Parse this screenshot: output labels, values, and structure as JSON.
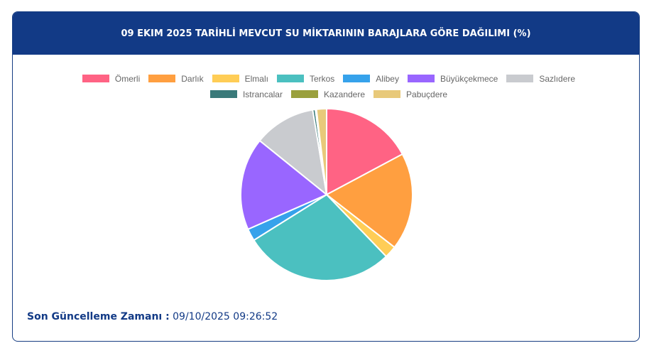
{
  "chart_data": {
    "type": "pie",
    "title": "09 EKIM 2025 TARİHLİ MEVCUT SU MİKTARININ BARAJLARA GÖRE DAĞILIMI (%)",
    "categories": [
      "Ömerli",
      "Darlık",
      "Elmalı",
      "Terkos",
      "Alibey",
      "Büyükçekmece",
      "Sazlıdere",
      "Istrancalar",
      "Kazandere",
      "Pabuçdere"
    ],
    "values": [
      17.2,
      18.3,
      2.3,
      28.3,
      2.3,
      17.4,
      11.6,
      0.5,
      0.2,
      1.9
    ],
    "colors": [
      "#ff6384",
      "#ff9f40",
      "#ffcd56",
      "#4bc0c0",
      "#36a2eb",
      "#9966ff",
      "#c9cbcf",
      "#3a7a7a",
      "#9aa03d",
      "#e8c97a"
    ]
  },
  "footer": {
    "label": "Son Güncelleme Zamanı :",
    "value": "09/10/2025 09:26:52"
  }
}
